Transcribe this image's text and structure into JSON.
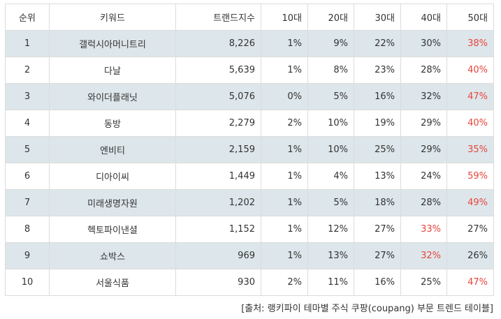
{
  "table": {
    "headers": [
      "순위",
      "키워드",
      "트랜드지수",
      "10대",
      "20대",
      "30대",
      "40대",
      "50대"
    ],
    "highlight_color": "#e8453c",
    "rows": [
      {
        "rank": "1",
        "keyword": "갤럭시아머니트리",
        "index": "8,226",
        "a10": "1%",
        "a20": "9%",
        "a30": "22%",
        "a40": "30%",
        "a50": "38%",
        "hl": [
          "a50"
        ]
      },
      {
        "rank": "2",
        "keyword": "다날",
        "index": "5,639",
        "a10": "1%",
        "a20": "8%",
        "a30": "23%",
        "a40": "28%",
        "a50": "40%",
        "hl": [
          "a50"
        ]
      },
      {
        "rank": "3",
        "keyword": "와이더플래닛",
        "index": "5,076",
        "a10": "0%",
        "a20": "5%",
        "a30": "16%",
        "a40": "32%",
        "a50": "47%",
        "hl": [
          "a50"
        ]
      },
      {
        "rank": "4",
        "keyword": "동방",
        "index": "2,279",
        "a10": "2%",
        "a20": "10%",
        "a30": "19%",
        "a40": "29%",
        "a50": "40%",
        "hl": [
          "a50"
        ]
      },
      {
        "rank": "5",
        "keyword": "엔비티",
        "index": "2,159",
        "a10": "1%",
        "a20": "10%",
        "a30": "25%",
        "a40": "29%",
        "a50": "35%",
        "hl": [
          "a50"
        ]
      },
      {
        "rank": "6",
        "keyword": "디아이씨",
        "index": "1,449",
        "a10": "1%",
        "a20": "4%",
        "a30": "13%",
        "a40": "24%",
        "a50": "59%",
        "hl": [
          "a50"
        ]
      },
      {
        "rank": "7",
        "keyword": "미래생명자원",
        "index": "1,202",
        "a10": "1%",
        "a20": "5%",
        "a30": "18%",
        "a40": "28%",
        "a50": "49%",
        "hl": [
          "a50"
        ]
      },
      {
        "rank": "8",
        "keyword": "헥토파이낸셜",
        "index": "1,152",
        "a10": "1%",
        "a20": "12%",
        "a30": "27%",
        "a40": "33%",
        "a50": "27%",
        "hl": [
          "a40"
        ]
      },
      {
        "rank": "9",
        "keyword": "쇼박스",
        "index": "969",
        "a10": "1%",
        "a20": "13%",
        "a30": "27%",
        "a40": "32%",
        "a50": "26%",
        "hl": [
          "a40"
        ]
      },
      {
        "rank": "10",
        "keyword": "서울식품",
        "index": "930",
        "a10": "2%",
        "a20": "11%",
        "a30": "16%",
        "a40": "25%",
        "a50": "47%",
        "hl": [
          "a50"
        ]
      }
    ]
  },
  "source_caption": "[출처: 랭키파이 테마별 주식 쿠팡(coupang) 부문 트렌드 테이블]"
}
